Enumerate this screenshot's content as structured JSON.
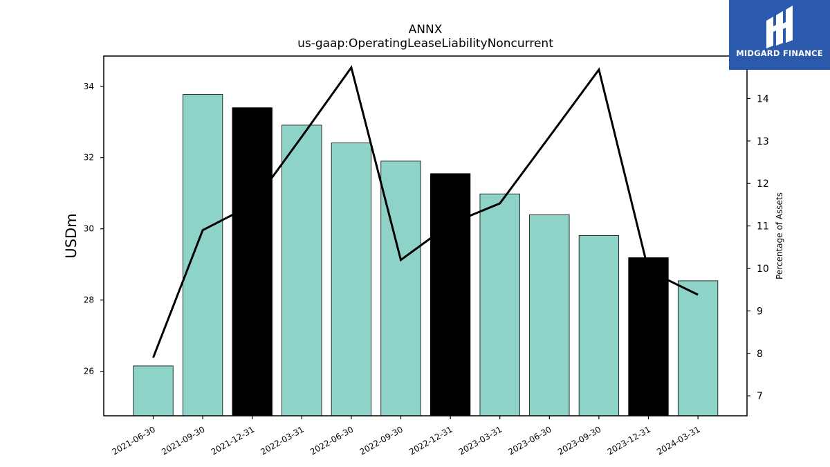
{
  "logo": {
    "text": "MIDGARD FINANCE",
    "background": "#2b5aad"
  },
  "chart_data": {
    "type": "bar",
    "title": "ANNX",
    "subtitle": "us-gaap:OperatingLeaseLiabilityNoncurrent",
    "ylabel": "USDm",
    "y2label": "Percentage of Assets",
    "ylim": [
      24.75,
      34.85
    ],
    "y2lim": [
      6.53,
      15.0
    ],
    "yticks": [
      26,
      28,
      30,
      32,
      34
    ],
    "y2ticks": [
      7,
      8,
      9,
      10,
      11,
      12,
      13,
      14
    ],
    "categories": [
      "2021-06-30",
      "2021-09-30",
      "2021-12-31",
      "2022-03-31",
      "2022-06-30",
      "2022-09-30",
      "2022-12-31",
      "2023-03-31",
      "2023-06-30",
      "2023-09-30",
      "2023-12-31",
      "2024-03-31"
    ],
    "series": [
      {
        "kind": "bar",
        "axis": "left",
        "values": [
          26.15,
          33.77,
          33.4,
          32.91,
          32.41,
          31.9,
          31.55,
          30.98,
          30.39,
          29.81,
          29.19,
          28.54
        ],
        "colors": [
          "#8dd3c7",
          "#8dd3c7",
          "#000000",
          "#8dd3c7",
          "#8dd3c7",
          "#8dd3c7",
          "#000000",
          "#8dd3c7",
          "#8dd3c7",
          "#8dd3c7",
          "#000000",
          "#8dd3c7"
        ]
      },
      {
        "kind": "line",
        "axis": "right",
        "color": "#000000",
        "values": [
          7.9,
          10.9,
          11.5,
          13.1,
          14.73,
          10.2,
          11.05,
          11.53,
          13.1,
          14.68,
          9.95,
          9.38
        ]
      }
    ],
    "grid": false,
    "legend": "none"
  }
}
